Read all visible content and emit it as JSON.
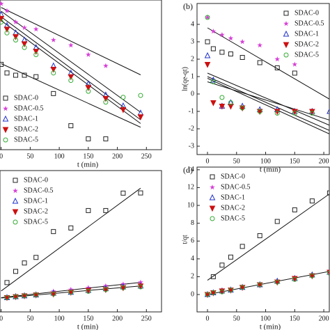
{
  "chart_data": [
    {
      "type": "scatter",
      "xlabel": "t (min)",
      "xlim": [
        -2,
        276
      ],
      "ylim": [
        -2,
        2
      ],
      "xticks": [
        0,
        50,
        100,
        150,
        200,
        250
      ],
      "legend": "lower left",
      "series": [
        {
          "name": "SDAC-0",
          "color": "#222222",
          "marker": "square",
          "x": [
            0,
            10,
            25,
            40,
            60,
            90,
            120,
            150,
            180
          ],
          "y": [
            0.28,
            0.05,
            -0.01,
            -0.01,
            -0.05,
            -0.5,
            -1.36,
            -1.71,
            -1.71
          ]
        },
        {
          "name": "SDAC-0.5",
          "color": "#d63fd6",
          "marker": "star",
          "x": [
            0,
            10,
            25,
            40,
            60,
            90,
            120,
            150,
            180
          ],
          "y": [
            1.9,
            1.71,
            1.41,
            1.26,
            1.22,
            0.93,
            0.79,
            0.54,
            0.24
          ]
        },
        {
          "name": "SDAC-1",
          "color": "#2233cc",
          "marker": "triangle",
          "x": [
            0,
            10,
            25,
            40,
            60,
            90,
            120,
            150,
            180,
            210,
            240
          ],
          "y": [
            1.61,
            1.32,
            1.12,
            0.93,
            0.73,
            0.24,
            0.05,
            -0.24,
            -0.54,
            -0.83,
            -1.02
          ]
        },
        {
          "name": "SDAC-2",
          "color": "#cc1111",
          "marker": "down",
          "x": [
            0,
            10,
            25,
            40,
            60,
            90,
            120,
            150,
            180,
            210,
            240
          ],
          "y": [
            1.51,
            1.22,
            1.02,
            0.83,
            0.63,
            0.15,
            -0.05,
            -0.34,
            -0.63,
            -0.93,
            -1.12
          ]
        },
        {
          "name": "SDAC-5",
          "color": "#33aa33",
          "marker": "circle",
          "x": [
            0,
            10,
            25,
            40,
            60,
            90,
            120,
            150,
            180,
            210,
            240
          ],
          "y": [
            1.41,
            1.12,
            0.93,
            0.73,
            0.54,
            0.05,
            -0.15,
            -0.44,
            -0.73,
            -0.6,
            -0.55
          ]
        }
      ],
      "fits": [
        {
          "x": [
            0,
            240
          ],
          "y": [
            1.8,
            0.0
          ]
        },
        {
          "x": [
            0,
            240
          ],
          "y": [
            0.3,
            -1.4
          ]
        },
        {
          "x": [
            0,
            240
          ],
          "y": [
            1.7,
            -1.0
          ]
        },
        {
          "x": [
            0,
            240
          ],
          "y": [
            1.55,
            -1.2
          ]
        },
        {
          "x": [
            0,
            240
          ],
          "y": [
            1.45,
            -1.3
          ]
        }
      ]
    },
    {
      "type": "scatter",
      "panel_label": "(b)",
      "xlabel": "t (min)",
      "ylabel": "ln(qe-qt)",
      "xlim": [
        -18,
        209.5
      ],
      "ylim": [
        -3.48,
        5.2
      ],
      "xticks": [
        0,
        50,
        100,
        150,
        200
      ],
      "yticks": [
        -3,
        -2,
        -1,
        0,
        1,
        2,
        3,
        4
      ],
      "legend": "upper right",
      "series": [
        {
          "name": "SDAC-0",
          "color": "#222222",
          "marker": "square",
          "x": [
            0,
            10,
            25,
            40,
            60,
            90,
            120,
            150
          ],
          "y": [
            3.0,
            2.6,
            2.4,
            2.3,
            2.1,
            1.8,
            1.5,
            1.2
          ]
        },
        {
          "name": "SDAC-0.5",
          "color": "#d63fd6",
          "marker": "star",
          "x": [
            0,
            10,
            25,
            40,
            60,
            90,
            120,
            150
          ],
          "y": [
            4.4,
            3.6,
            3.4,
            3.2,
            3.0,
            2.8,
            2.0,
            1.7
          ]
        },
        {
          "name": "SDAC-1",
          "color": "#2233cc",
          "marker": "triangle",
          "x": [
            0,
            10,
            25,
            40,
            60,
            90,
            120,
            150,
            180,
            210
          ],
          "y": [
            2.2,
            0.8,
            -0.7,
            -0.5,
            -0.7,
            -0.9,
            -0.9,
            -1.0,
            -1.0,
            -1.0
          ]
        },
        {
          "name": "SDAC-2",
          "color": "#cc1111",
          "marker": "down",
          "x": [
            0,
            10,
            25,
            40,
            60,
            90,
            120,
            150,
            180
          ],
          "y": [
            1.7,
            -0.5,
            -0.7,
            -0.7,
            -0.8,
            -1.0,
            -1.0,
            -1.0,
            -1.0
          ]
        },
        {
          "name": "SDAC-5",
          "color": "#33aa33",
          "marker": "circle",
          "x": [
            0,
            10,
            25,
            40,
            60,
            90,
            120,
            150,
            180
          ],
          "y": [
            4.4,
            0.7,
            -0.2,
            -0.5,
            -0.8,
            -1.0,
            -1.1,
            -1.1,
            -1.1
          ]
        }
      ],
      "fits": [
        {
          "x": [
            0,
            210
          ],
          "y": [
            3.8,
            -0.3
          ]
        },
        {
          "x": [
            0,
            210
          ],
          "y": [
            1.2,
            -1.8
          ]
        },
        {
          "x": [
            0,
            210
          ],
          "y": [
            1.0,
            -2.1
          ]
        },
        {
          "x": [
            0,
            210
          ],
          "y": [
            0.7,
            -1.5
          ]
        },
        {
          "x": [
            0,
            210
          ],
          "y": [
            0.9,
            -2.3
          ]
        }
      ]
    },
    {
      "type": "scatter",
      "xlabel": "t (min)",
      "xlim": [
        -2,
        276
      ],
      "ylim": [
        -1.0,
        14.8
      ],
      "xticks": [
        0,
        50,
        100,
        150,
        200,
        250
      ],
      "legend": "upper left",
      "series": [
        {
          "name": "SDAC-0",
          "color": "#222222",
          "marker": "square",
          "x": [
            10,
            25,
            40,
            60,
            90,
            120,
            150,
            180,
            210,
            240
          ],
          "y": [
            2.28,
            3.53,
            4.47,
            5.09,
            7.98,
            8.38,
            10.33,
            10.33,
            12.28,
            12.3
          ]
        },
        {
          "name": "SDAC-0.5",
          "color": "#d63fd6",
          "marker": "star",
          "x": [
            10,
            25,
            40,
            60,
            90,
            120,
            150,
            180,
            210,
            240
          ],
          "y": [
            0.7,
            0.8,
            0.9,
            1.0,
            1.3,
            1.5,
            1.7,
            1.9,
            2.1,
            2.3
          ]
        },
        {
          "name": "SDAC-1",
          "color": "#2233cc",
          "marker": "triangle",
          "x": [
            10,
            25,
            40,
            60,
            90,
            120,
            150,
            180,
            210,
            240
          ],
          "y": [
            0.6,
            0.7,
            0.8,
            0.9,
            1.1,
            1.2,
            1.4,
            1.6,
            1.8,
            1.9
          ]
        },
        {
          "name": "SDAC-2",
          "color": "#cc1111",
          "marker": "down",
          "x": [
            10,
            25,
            40,
            60,
            90,
            120,
            150,
            180,
            210,
            240
          ],
          "y": [
            0.6,
            0.7,
            0.8,
            0.9,
            1.0,
            1.2,
            1.4,
            1.5,
            1.7,
            1.9
          ]
        },
        {
          "name": "SDAC-5",
          "color": "#33aa33",
          "marker": "circle",
          "x": [
            10,
            25,
            40,
            60,
            90,
            120,
            150,
            180,
            210,
            240
          ],
          "y": [
            0.6,
            0.7,
            0.8,
            0.9,
            1.0,
            1.2,
            1.3,
            1.5,
            1.7,
            1.8
          ]
        }
      ],
      "fits": [
        {
          "x": [
            0,
            240
          ],
          "y": [
            1.34,
            12.83
          ]
        },
        {
          "x": [
            0,
            240
          ],
          "y": [
            0.6,
            2.3
          ]
        },
        {
          "x": [
            0,
            240
          ],
          "y": [
            0.56,
            1.9
          ]
        }
      ]
    },
    {
      "type": "scatter",
      "panel_label": "(d)",
      "xlabel": "t (min)",
      "ylabel": "t/qt",
      "xlim": [
        -18,
        209.5
      ],
      "ylim": [
        -1.95,
        14.3
      ],
      "xticks": [
        0,
        50,
        100,
        150,
        200
      ],
      "yticks": [
        0,
        2,
        4,
        6,
        8,
        10,
        12,
        14
      ],
      "legend": "upper left",
      "series": [
        {
          "name": "SDAC-0",
          "color": "#222222",
          "marker": "square",
          "x": [
            10,
            25,
            40,
            60,
            90,
            120,
            150,
            180,
            210
          ],
          "y": [
            2.0,
            3.3,
            4.2,
            5.4,
            6.6,
            8.2,
            9.5,
            10.5,
            11.4
          ]
        },
        {
          "name": "SDAC-0.5",
          "color": "#d63fd6",
          "marker": "star",
          "x": [
            0,
            10,
            25,
            40,
            60,
            90,
            120,
            150,
            180,
            210
          ],
          "y": [
            0.0,
            0.2,
            0.4,
            0.6,
            0.8,
            1.2,
            1.5,
            1.9,
            2.2,
            2.6
          ]
        },
        {
          "name": "SDAC-1",
          "color": "#2233cc",
          "marker": "triangle",
          "x": [
            0,
            10,
            25,
            40,
            60,
            90,
            120,
            150,
            180,
            210
          ],
          "y": [
            0.0,
            0.2,
            0.4,
            0.5,
            0.8,
            1.1,
            1.5,
            1.8,
            2.2,
            2.5
          ]
        },
        {
          "name": "SDAC-2",
          "color": "#cc1111",
          "marker": "down",
          "x": [
            0,
            10,
            25,
            40,
            60,
            90,
            120,
            150,
            180,
            210
          ],
          "y": [
            0.0,
            0.2,
            0.4,
            0.5,
            0.8,
            1.1,
            1.4,
            1.8,
            2.1,
            2.5
          ]
        },
        {
          "name": "SDAC-5",
          "color": "#33aa33",
          "marker": "circle",
          "x": [
            0,
            10,
            25,
            40,
            60,
            90,
            120,
            150,
            180,
            210
          ],
          "y": [
            0.0,
            0.2,
            0.3,
            0.5,
            0.8,
            1.1,
            1.4,
            1.7,
            2.1,
            2.4
          ]
        }
      ],
      "fits": [
        {
          "x": [
            0,
            210
          ],
          "y": [
            1.6,
            11.3
          ]
        },
        {
          "x": [
            0,
            210
          ],
          "y": [
            0.0,
            2.6
          ]
        }
      ]
    }
  ]
}
